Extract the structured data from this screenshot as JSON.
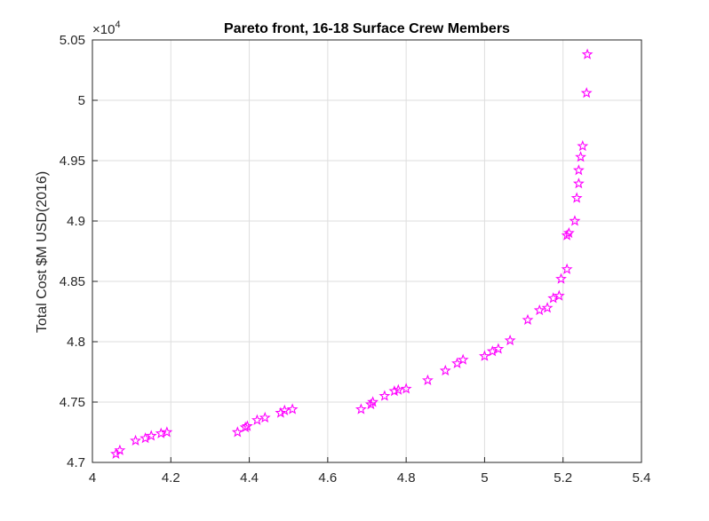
{
  "chart_data": {
    "type": "scatter",
    "title": "Pareto front, 16-18 Surface Crew Members",
    "xlabel": "",
    "ylabel": "Total Cost $M USD(2016)",
    "y_multiplier": {
      "base": "×10",
      "exponent": "4"
    },
    "xlim": [
      4.0,
      5.4
    ],
    "ylim": [
      4.7,
      5.05
    ],
    "xticks": [
      "4",
      "4.2",
      "4.4",
      "4.6",
      "4.8",
      "5",
      "5.2",
      "5.4"
    ],
    "yticks": [
      "4.7",
      "4.75",
      "4.8",
      "4.85",
      "4.9",
      "4.95",
      "5",
      "5.05"
    ],
    "grid": true,
    "marker": "pentagram",
    "color": "#ff00ff",
    "points": [
      [
        4.06,
        4.707
      ],
      [
        4.07,
        4.71
      ],
      [
        4.11,
        4.718
      ],
      [
        4.135,
        4.72
      ],
      [
        4.15,
        4.722
      ],
      [
        4.175,
        4.724
      ],
      [
        4.19,
        4.725
      ],
      [
        4.37,
        4.725
      ],
      [
        4.39,
        4.729
      ],
      [
        4.395,
        4.73
      ],
      [
        4.42,
        4.735
      ],
      [
        4.44,
        4.737
      ],
      [
        4.48,
        4.741
      ],
      [
        4.49,
        4.743
      ],
      [
        4.51,
        4.744
      ],
      [
        4.685,
        4.744
      ],
      [
        4.71,
        4.748
      ],
      [
        4.715,
        4.75
      ],
      [
        4.745,
        4.755
      ],
      [
        4.77,
        4.759
      ],
      [
        4.78,
        4.76
      ],
      [
        4.8,
        4.761
      ],
      [
        4.855,
        4.768
      ],
      [
        4.9,
        4.776
      ],
      [
        4.93,
        4.782
      ],
      [
        4.945,
        4.785
      ],
      [
        5.0,
        4.788
      ],
      [
        5.02,
        4.792
      ],
      [
        5.035,
        4.794
      ],
      [
        5.065,
        4.801
      ],
      [
        5.11,
        4.818
      ],
      [
        5.14,
        4.826
      ],
      [
        5.16,
        4.828
      ],
      [
        5.175,
        4.836
      ],
      [
        5.19,
        4.838
      ],
      [
        5.195,
        4.852
      ],
      [
        5.21,
        4.86
      ],
      [
        5.21,
        4.888
      ],
      [
        5.215,
        4.89
      ],
      [
        5.23,
        4.9
      ],
      [
        5.235,
        4.919
      ],
      [
        5.24,
        4.931
      ],
      [
        5.24,
        4.942
      ],
      [
        5.245,
        4.953
      ],
      [
        5.25,
        4.962
      ],
      [
        5.26,
        5.006
      ],
      [
        5.262,
        5.038
      ]
    ]
  }
}
